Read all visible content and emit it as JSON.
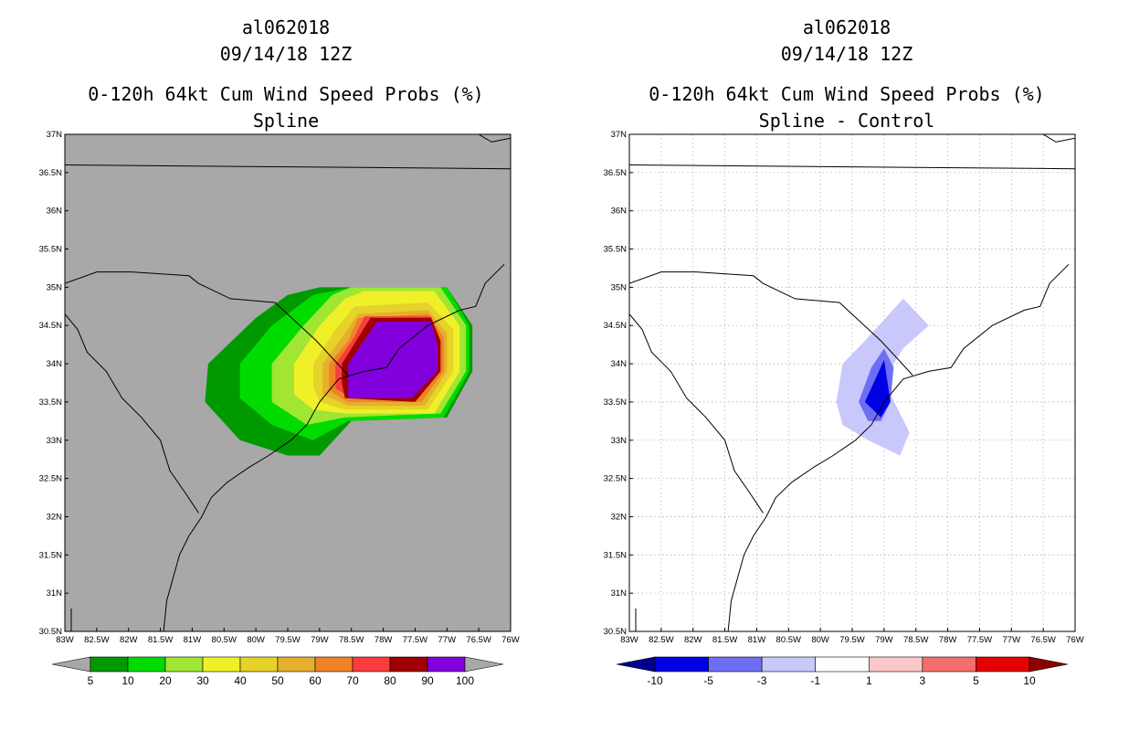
{
  "chart_data": [
    {
      "type": "heatmap",
      "title_lines": [
        "al062018",
        "09/14/18 12Z",
        "0-120h 64kt Cum Wind Speed Probs (%)",
        "Spline"
      ],
      "xlabel": "",
      "ylabel": "",
      "x_ticks": [
        "83W",
        "82.5W",
        "82W",
        "81.5W",
        "81W",
        "80.5W",
        "80W",
        "79.5W",
        "79W",
        "78.5W",
        "78W",
        "77.5W",
        "77W",
        "76.5W",
        "76W"
      ],
      "y_ticks": [
        "30.5N",
        "31N",
        "31.5N",
        "32N",
        "32.5N",
        "33N",
        "33.5N",
        "34N",
        "34.5N",
        "35N",
        "35.5N",
        "36N",
        "36.5N",
        "37N"
      ],
      "xlim": [
        -83,
        -76
      ],
      "ylim": [
        30.5,
        37
      ],
      "background_color": "#a8a8a8",
      "grid": false,
      "colorbar": {
        "labels": [
          "5",
          "10",
          "20",
          "30",
          "40",
          "50",
          "60",
          "70",
          "80",
          "90",
          "100"
        ],
        "colors": [
          "#009a00",
          "#00dc00",
          "#a0e632",
          "#f0f028",
          "#e6d228",
          "#e6af2d",
          "#f08228",
          "#fa3c3c",
          "#a00000",
          "#8200dc"
        ],
        "under_color": "#a8a8a8",
        "over_color": "#a8a8a8"
      },
      "levels": [
        {
          "level": 5,
          "color": "#009a00",
          "polygon": [
            [
              -80.75,
              34.0
            ],
            [
              -80.0,
              34.6
            ],
            [
              -79.5,
              34.9
            ],
            [
              -79.0,
              35.0
            ],
            [
              -77.0,
              35.0
            ],
            [
              -76.6,
              34.5
            ],
            [
              -76.6,
              33.9
            ],
            [
              -77.0,
              33.3
            ],
            [
              -78.5,
              33.25
            ],
            [
              -79.0,
              32.8
            ],
            [
              -79.5,
              32.8
            ],
            [
              -80.25,
              33.0
            ],
            [
              -80.8,
              33.5
            ]
          ]
        },
        {
          "level": 10,
          "color": "#00dc00",
          "polygon": [
            [
              -80.25,
              34.0
            ],
            [
              -79.75,
              34.5
            ],
            [
              -79.1,
              34.9
            ],
            [
              -78.5,
              35.0
            ],
            [
              -77.0,
              35.0
            ],
            [
              -76.65,
              34.5
            ],
            [
              -76.65,
              33.9
            ],
            [
              -77.05,
              33.3
            ],
            [
              -78.55,
              33.25
            ],
            [
              -79.1,
              33.0
            ],
            [
              -79.75,
              33.2
            ],
            [
              -80.25,
              33.55
            ]
          ]
        },
        {
          "level": 20,
          "color": "#a0e632",
          "polygon": [
            [
              -79.75,
              34.0
            ],
            [
              -79.25,
              34.5
            ],
            [
              -78.8,
              34.9
            ],
            [
              -78.5,
              35.0
            ],
            [
              -77.1,
              35.0
            ],
            [
              -76.7,
              34.5
            ],
            [
              -76.7,
              33.9
            ],
            [
              -77.1,
              33.35
            ],
            [
              -78.6,
              33.3
            ],
            [
              -79.2,
              33.2
            ],
            [
              -79.75,
              33.5
            ]
          ]
        },
        {
          "level": 30,
          "color": "#f0f028",
          "polygon": [
            [
              -79.4,
              34.0
            ],
            [
              -79.0,
              34.5
            ],
            [
              -78.6,
              34.85
            ],
            [
              -78.3,
              34.95
            ],
            [
              -77.2,
              34.95
            ],
            [
              -76.8,
              34.5
            ],
            [
              -76.8,
              33.9
            ],
            [
              -77.2,
              33.35
            ],
            [
              -78.6,
              33.35
            ],
            [
              -79.1,
              33.4
            ],
            [
              -79.4,
              33.6
            ]
          ]
        },
        {
          "level": 40,
          "color": "#e6d228",
          "polygon": [
            [
              -79.1,
              34.0
            ],
            [
              -78.75,
              34.45
            ],
            [
              -78.45,
              34.75
            ],
            [
              -77.3,
              34.8
            ],
            [
              -76.9,
              34.45
            ],
            [
              -76.9,
              33.9
            ],
            [
              -77.3,
              33.4
            ],
            [
              -78.6,
              33.4
            ],
            [
              -79.0,
              33.5
            ],
            [
              -79.1,
              33.7
            ]
          ]
        },
        {
          "level": 50,
          "color": "#e6af2d",
          "polygon": [
            [
              -78.95,
              34.0
            ],
            [
              -78.6,
              34.4
            ],
            [
              -78.4,
              34.65
            ],
            [
              -77.3,
              34.7
            ],
            [
              -77.0,
              34.4
            ],
            [
              -77.0,
              33.9
            ],
            [
              -77.35,
              33.45
            ],
            [
              -78.55,
              33.45
            ],
            [
              -78.95,
              33.6
            ]
          ]
        },
        {
          "level": 60,
          "color": "#f08228",
          "polygon": [
            [
              -78.85,
              34.0
            ],
            [
              -78.55,
              34.3
            ],
            [
              -78.4,
              34.6
            ],
            [
              -77.3,
              34.65
            ],
            [
              -77.05,
              34.35
            ],
            [
              -77.05,
              33.9
            ],
            [
              -77.4,
              33.5
            ],
            [
              -78.55,
              33.5
            ],
            [
              -78.85,
              33.65
            ]
          ]
        },
        {
          "level": 70,
          "color": "#fa3c3c",
          "polygon": [
            [
              -78.75,
              34.0
            ],
            [
              -78.45,
              34.35
            ],
            [
              -78.3,
              34.62
            ],
            [
              -77.25,
              34.62
            ],
            [
              -77.1,
              34.3
            ],
            [
              -77.1,
              33.9
            ],
            [
              -77.45,
              33.55
            ],
            [
              -78.5,
              33.55
            ],
            [
              -78.75,
              33.68
            ]
          ]
        },
        {
          "level": 80,
          "color": "#a00000",
          "polygon": [
            [
              -78.65,
              34.0
            ],
            [
              -78.2,
              34.6
            ],
            [
              -77.25,
              34.6
            ],
            [
              -77.1,
              34.3
            ],
            [
              -77.1,
              33.9
            ],
            [
              -77.5,
              33.5
            ],
            [
              -78.6,
              33.55
            ],
            [
              -78.65,
              33.75
            ]
          ]
        },
        {
          "level": 90,
          "color": "#8200dc",
          "polygon": [
            [
              -78.55,
              34.0
            ],
            [
              -78.1,
              34.55
            ],
            [
              -77.25,
              34.55
            ],
            [
              -77.15,
              34.25
            ],
            [
              -77.15,
              33.9
            ],
            [
              -77.55,
              33.55
            ],
            [
              -78.55,
              33.55
            ]
          ]
        }
      ]
    },
    {
      "type": "heatmap",
      "title_lines": [
        "al062018",
        "09/14/18 12Z",
        "0-120h 64kt Cum Wind Speed Probs (%)",
        "Spline - Control"
      ],
      "xlabel": "",
      "ylabel": "",
      "x_ticks": [
        "83W",
        "82.5W",
        "82W",
        "81.5W",
        "81W",
        "80.5W",
        "80W",
        "79.5W",
        "79W",
        "78.5W",
        "78W",
        "77.5W",
        "77W",
        "76.5W",
        "76W"
      ],
      "y_ticks": [
        "30.5N",
        "31N",
        "31.5N",
        "32N",
        "32.5N",
        "33N",
        "33.5N",
        "34N",
        "34.5N",
        "35N",
        "35.5N",
        "36N",
        "36.5N",
        "37N"
      ],
      "xlim": [
        -83,
        -76
      ],
      "ylim": [
        30.5,
        37
      ],
      "background_color": "#ffffff",
      "grid": true,
      "colorbar": {
        "labels": [
          "-10",
          "-5",
          "-3",
          "-1",
          "1",
          "3",
          "5",
          "10"
        ],
        "colors": [
          "#0000e6",
          "#6e6ef5",
          "#c8c8fa",
          "#ffffff",
          "#fac8c8",
          "#f56e6e",
          "#e60000"
        ],
        "under_color": "#00008c",
        "over_color": "#8c0000"
      },
      "levels": [
        {
          "level": -1,
          "color": "#c8c8fa",
          "polygon": [
            [
              -79.75,
              33.5
            ],
            [
              -79.65,
              34.0
            ],
            [
              -79.3,
              34.3
            ],
            [
              -78.7,
              34.85
            ],
            [
              -78.3,
              34.5
            ],
            [
              -78.7,
              34.2
            ],
            [
              -78.85,
              34.0
            ],
            [
              -78.9,
              33.6
            ],
            [
              -78.6,
              33.1
            ],
            [
              -78.75,
              32.8
            ],
            [
              -79.25,
              33.0
            ],
            [
              -79.65,
              33.2
            ]
          ]
        },
        {
          "level": -3,
          "color": "#6e6ef5",
          "polygon": [
            [
              -79.4,
              33.5
            ],
            [
              -79.2,
              33.95
            ],
            [
              -79.0,
              34.2
            ],
            [
              -78.85,
              33.95
            ],
            [
              -78.9,
              33.5
            ],
            [
              -79.05,
              33.25
            ],
            [
              -79.25,
              33.25
            ]
          ]
        },
        {
          "level": -5,
          "color": "#0000e6",
          "polygon": [
            [
              -79.3,
              33.5
            ],
            [
              -79.0,
              34.05
            ],
            [
              -78.9,
              33.5
            ],
            [
              -79.05,
              33.3
            ]
          ]
        }
      ]
    }
  ]
}
